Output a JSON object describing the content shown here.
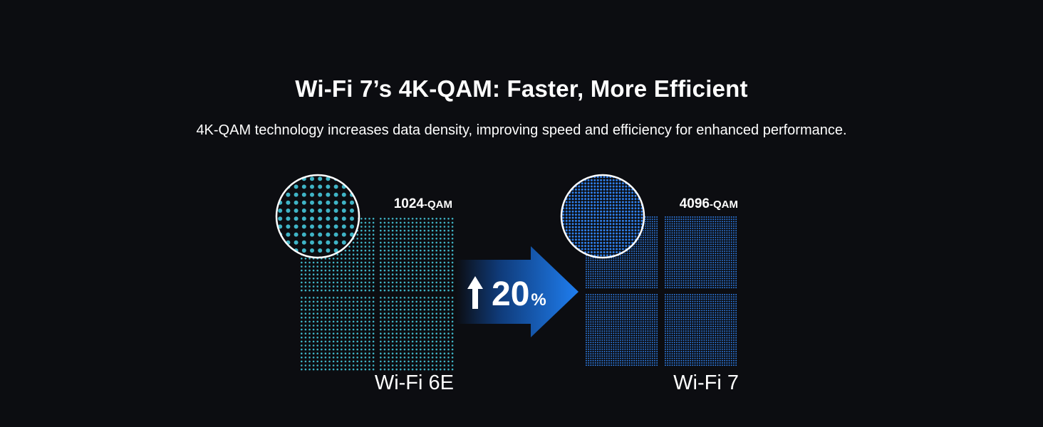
{
  "header": {
    "title": "Wi-Fi 7’s 4K-QAM: Faster, More Efficient",
    "subtitle": "4K-QAM technology increases data density, improving speed and efficiency for enhanced performance."
  },
  "left": {
    "qam_number": "1024",
    "qam_suffix": "-QAM",
    "name": "Wi-Fi 6E",
    "dot_color": "#3fb4c6"
  },
  "right": {
    "qam_number": "4096",
    "qam_suffix": "-QAM",
    "name": "Wi-Fi 7",
    "dot_color": "#2f7fea"
  },
  "arrow": {
    "value": "20",
    "unit": "%",
    "color": "#1f7ef0"
  }
}
